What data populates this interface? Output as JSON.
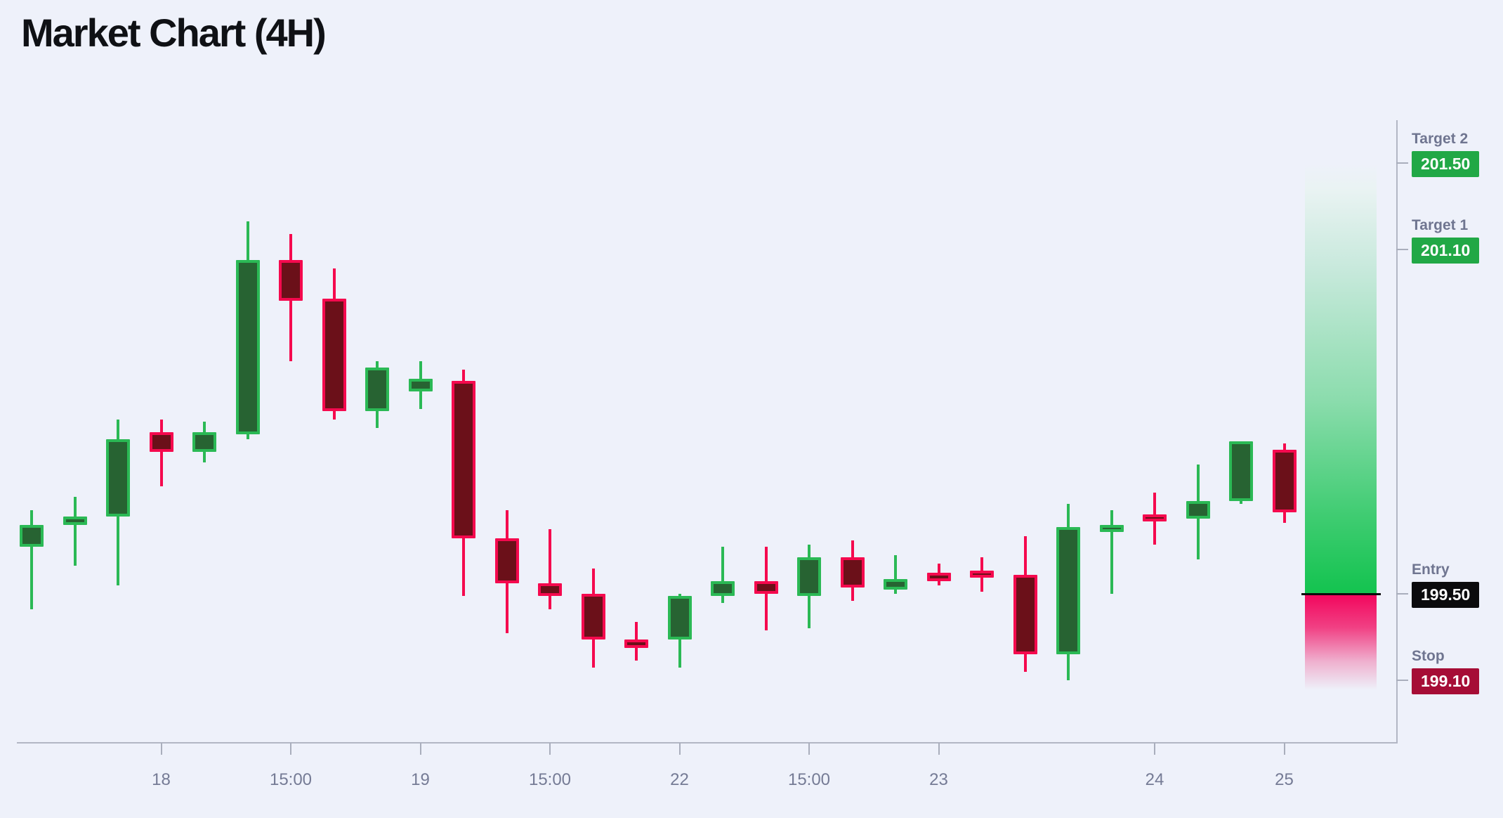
{
  "header": {
    "title": "Market Chart (4H)"
  },
  "levels": {
    "target2": {
      "label": "Target 2",
      "value": "201.50",
      "price": 201.5,
      "color": "#21a846"
    },
    "target1": {
      "label": "Target 1",
      "value": "201.10",
      "price": 201.1,
      "color": "#21a846"
    },
    "entry": {
      "label": "Entry",
      "value": "199.50",
      "price": 199.5,
      "color": "#0b0b0d"
    },
    "stop": {
      "label": "Stop",
      "value": "199.10",
      "price": 199.1,
      "color": "#a60d36"
    }
  },
  "chart_data": {
    "type": "candlestick",
    "title": "Market Chart (4H)",
    "timeframe": "4H",
    "y_axis": {
      "top_price": 201.5,
      "bottom_price": 199.1,
      "gridlines": false
    },
    "x_ticks": [
      {
        "label": "18",
        "candle_index": 3
      },
      {
        "label": "15:00",
        "candle_index": 6
      },
      {
        "label": "19",
        "candle_index": 9
      },
      {
        "label": "15:00",
        "candle_index": 12
      },
      {
        "label": "22",
        "candle_index": 15
      },
      {
        "label": "15:00",
        "candle_index": 18
      },
      {
        "label": "23",
        "candle_index": 21
      },
      {
        "label": "24",
        "candle_index": 26
      },
      {
        "label": "25",
        "candle_index": 29
      }
    ],
    "candles": [
      {
        "o": 199.72,
        "h": 199.89,
        "l": 199.43,
        "c": 199.82,
        "dir": "up"
      },
      {
        "o": 199.82,
        "h": 199.95,
        "l": 199.63,
        "c": 199.86,
        "dir": "up"
      },
      {
        "o": 199.86,
        "h": 200.31,
        "l": 199.54,
        "c": 200.22,
        "dir": "up"
      },
      {
        "o": 200.25,
        "h": 200.31,
        "l": 200.0,
        "c": 200.16,
        "dir": "down"
      },
      {
        "o": 200.16,
        "h": 200.3,
        "l": 200.11,
        "c": 200.25,
        "dir": "up"
      },
      {
        "o": 200.24,
        "h": 201.23,
        "l": 200.22,
        "c": 201.05,
        "dir": "up"
      },
      {
        "o": 201.05,
        "h": 201.17,
        "l": 200.58,
        "c": 200.86,
        "dir": "down"
      },
      {
        "o": 200.87,
        "h": 201.01,
        "l": 200.31,
        "c": 200.35,
        "dir": "down"
      },
      {
        "o": 200.35,
        "h": 200.58,
        "l": 200.27,
        "c": 200.55,
        "dir": "up"
      },
      {
        "o": 200.44,
        "h": 200.58,
        "l": 200.36,
        "c": 200.5,
        "dir": "up"
      },
      {
        "o": 200.49,
        "h": 200.54,
        "l": 199.49,
        "c": 199.76,
        "dir": "down"
      },
      {
        "o": 199.76,
        "h": 199.89,
        "l": 199.32,
        "c": 199.55,
        "dir": "down"
      },
      {
        "o": 199.55,
        "h": 199.8,
        "l": 199.43,
        "c": 199.49,
        "dir": "down"
      },
      {
        "o": 199.5,
        "h": 199.62,
        "l": 199.16,
        "c": 199.29,
        "dir": "down"
      },
      {
        "o": 199.29,
        "h": 199.37,
        "l": 199.19,
        "c": 199.25,
        "dir": "down"
      },
      {
        "o": 199.29,
        "h": 199.5,
        "l": 199.16,
        "c": 199.49,
        "dir": "up"
      },
      {
        "o": 199.49,
        "h": 199.72,
        "l": 199.46,
        "c": 199.56,
        "dir": "up"
      },
      {
        "o": 199.56,
        "h": 199.72,
        "l": 199.33,
        "c": 199.5,
        "dir": "down"
      },
      {
        "o": 199.49,
        "h": 199.73,
        "l": 199.34,
        "c": 199.67,
        "dir": "up"
      },
      {
        "o": 199.67,
        "h": 199.75,
        "l": 199.47,
        "c": 199.53,
        "dir": "down"
      },
      {
        "o": 199.52,
        "h": 199.68,
        "l": 199.5,
        "c": 199.57,
        "dir": "up"
      },
      {
        "o": 199.6,
        "h": 199.64,
        "l": 199.54,
        "c": 199.56,
        "dir": "down"
      },
      {
        "o": 199.61,
        "h": 199.67,
        "l": 199.51,
        "c": 199.58,
        "dir": "down"
      },
      {
        "o": 199.59,
        "h": 199.77,
        "l": 199.14,
        "c": 199.22,
        "dir": "down"
      },
      {
        "o": 199.22,
        "h": 199.92,
        "l": 199.1,
        "c": 199.81,
        "dir": "up"
      },
      {
        "o": 199.81,
        "h": 199.89,
        "l": 199.5,
        "c": 199.82,
        "dir": "up"
      },
      {
        "o": 199.87,
        "h": 199.97,
        "l": 199.73,
        "c": 199.84,
        "dir": "down"
      },
      {
        "o": 199.85,
        "h": 200.1,
        "l": 199.66,
        "c": 199.93,
        "dir": "up"
      },
      {
        "o": 199.93,
        "h": 200.21,
        "l": 199.92,
        "c": 200.21,
        "dir": "up"
      },
      {
        "o": 200.17,
        "h": 200.2,
        "l": 199.83,
        "c": 199.88,
        "dir": "down"
      }
    ],
    "trade_zone": {
      "upper": 201.5,
      "entry": 199.5,
      "stop": 199.1
    },
    "colors": {
      "background": "#eef1fa",
      "bull_border": "#2bb955",
      "bull_fill": "#276332",
      "bear_border": "#f5094e",
      "bear_fill": "#6b1019",
      "zone_green": "#13c34f",
      "zone_pink": "#f2055c",
      "entry_line": "#0c0c0c",
      "axis": "#b2b6c4",
      "label_text": "#6f7590"
    }
  }
}
